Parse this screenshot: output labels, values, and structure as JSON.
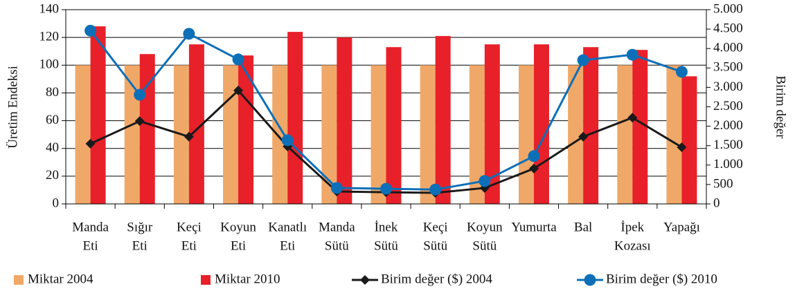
{
  "chart_data": {
    "type": "bar",
    "categories": [
      [
        "Manda",
        "Eti"
      ],
      [
        "Sığır",
        "Eti"
      ],
      [
        "Keçi",
        "Eti"
      ],
      [
        "Koyun",
        "Eti"
      ],
      [
        "Kanatlı",
        "Eti"
      ],
      [
        "Manda",
        "Sütü"
      ],
      [
        "İnek",
        "Sütü"
      ],
      [
        "Keçi",
        "Sütü"
      ],
      [
        "Koyun",
        "Sütü"
      ],
      [
        "Yumurta"
      ],
      [
        "Bal"
      ],
      [
        "İpek",
        "Kozası"
      ],
      [
        "Yapağı"
      ]
    ],
    "series": [
      {
        "name": "Miktar 2004",
        "type": "bar",
        "color": "#f0a868",
        "values": [
          100,
          100,
          100,
          100,
          100,
          100,
          100,
          100,
          100,
          100,
          100,
          100,
          100
        ]
      },
      {
        "name": "Miktar 2010",
        "type": "bar",
        "color": "#e8202a",
        "values": [
          128,
          108,
          115,
          107,
          124,
          120,
          113,
          121,
          115,
          115,
          113,
          111,
          92
        ]
      },
      {
        "name": "Birim değer ($) 2004",
        "type": "line",
        "axis": "y2",
        "marker": "diamond",
        "color": "#1a1a1a",
        "values": [
          1550,
          2130,
          1730,
          2920,
          1480,
          320,
          300,
          285,
          410,
          910,
          1730,
          2220,
          1460
        ]
      },
      {
        "name": "Birim değer ($) 2010",
        "type": "line",
        "axis": "y2",
        "marker": "circle",
        "color": "#0c6fb8",
        "values": [
          4460,
          2810,
          4380,
          3720,
          1640,
          410,
          390,
          370,
          590,
          1230,
          3700,
          3840,
          3400
        ]
      }
    ],
    "ylabel": "Üretim Endeksi",
    "y2label": "Birim değer",
    "ylim": [
      0,
      140
    ],
    "yticks": [
      0,
      20,
      40,
      60,
      80,
      100,
      120,
      140
    ],
    "y2lim": [
      0,
      5000
    ],
    "y2ticks": [
      {
        "value": 0,
        "label": "0"
      },
      {
        "value": 500,
        "label": "500"
      },
      {
        "value": 1000,
        "label": "1.000"
      },
      {
        "value": 1500,
        "label": "1.500"
      },
      {
        "value": 2000,
        "label": "2.000"
      },
      {
        "value": 2500,
        "label": "2.500"
      },
      {
        "value": 3000,
        "label": "3.000"
      },
      {
        "value": 3500,
        "label": "3.500"
      },
      {
        "value": 4000,
        "label": "4.000"
      },
      {
        "value": 4500,
        "label": "4.500"
      },
      {
        "value": 5000,
        "label": "5.000"
      }
    ],
    "grid": true,
    "legend": "bottom"
  }
}
